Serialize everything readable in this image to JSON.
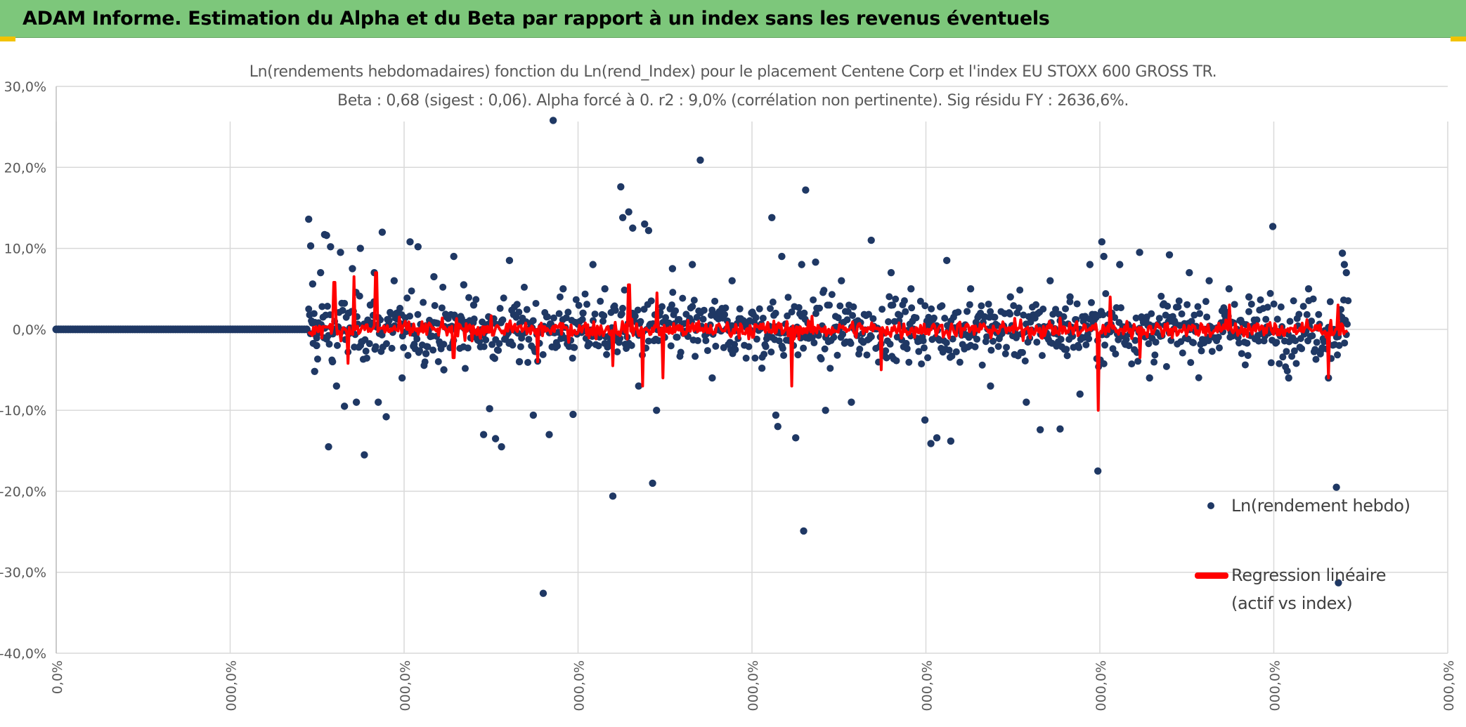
{
  "header": {
    "title": "ADAM Informe. Estimation du Alpha et du Beta par rapport à un index sans les revenus éventuels",
    "accent_color": "#7dc77b"
  },
  "chart_data": {
    "type": "scatter",
    "title": "Ln(rendements hebdomadaires) fonction du Ln(rend_Index) pour le placement Centene Corp et l'index EU STOXX 600 GROSS TR.",
    "subtitle": "Beta : 0,68 (sigest : 0,06). Alpha forcé à 0. r2 : 9,0% (corrélation non pertinente). Sig résidu FY : 2636,6%.",
    "xlabel": "",
    "ylabel": "",
    "ylim": [
      -0.4,
      0.3
    ],
    "y_ticks": [
      0.3,
      0.2,
      0.1,
      0.0,
      -0.1,
      -0.2,
      -0.3,
      -0.4
    ],
    "y_tick_labels": [
      "30,0%",
      "20,0%",
      "10,0%",
      "0,0%",
      "-10,0%",
      "-20,0%",
      "-30,0%",
      "-40,0%"
    ],
    "x_tick_labels": [
      "0,0%",
      "000,0%",
      "000,0%",
      "000,0%",
      "000,0%",
      "000,0%",
      "000,0%",
      "000,0%",
      "000,0%"
    ],
    "grid": true,
    "legend_position": "right",
    "series": [
      {
        "name": "Ln(rendement hebdo)",
        "kind": "scatter",
        "color": "#1f3864",
        "points": [
          [
            0.0,
            0.0
          ],
          [
            0.3,
            0.0
          ],
          [
            0.6,
            0.0
          ],
          [
            0.9,
            0.0
          ],
          [
            1.2,
            0.0
          ],
          [
            1.27,
            0.136
          ],
          [
            1.28,
            0.103
          ],
          [
            1.29,
            0.056
          ],
          [
            1.3,
            -0.052
          ],
          [
            1.31,
            -0.02
          ],
          [
            1.33,
            0.07
          ],
          [
            1.35,
            0.117
          ],
          [
            1.36,
            0.116
          ],
          [
            1.37,
            -0.145
          ],
          [
            1.38,
            0.102
          ],
          [
            1.39,
            -0.04
          ],
          [
            1.41,
            -0.07
          ],
          [
            1.43,
            0.095
          ],
          [
            1.45,
            -0.095
          ],
          [
            1.47,
            0.02
          ],
          [
            1.49,
            0.075
          ],
          [
            1.51,
            -0.09
          ],
          [
            1.53,
            0.1
          ],
          [
            1.55,
            -0.155
          ],
          [
            1.58,
            0.03
          ],
          [
            1.6,
            0.07
          ],
          [
            1.62,
            -0.09
          ],
          [
            1.64,
            0.12
          ],
          [
            1.66,
            -0.108
          ],
          [
            1.7,
            0.06
          ],
          [
            1.74,
            -0.06
          ],
          [
            1.78,
            0.108
          ],
          [
            1.82,
            0.102
          ],
          [
            1.86,
            -0.03
          ],
          [
            1.9,
            0.065
          ],
          [
            1.95,
            -0.05
          ],
          [
            2.0,
            0.09
          ],
          [
            2.05,
            0.055
          ],
          [
            2.1,
            0.03
          ],
          [
            2.15,
            -0.13
          ],
          [
            2.18,
            -0.098
          ],
          [
            2.21,
            -0.135
          ],
          [
            2.24,
            -0.145
          ],
          [
            2.28,
            0.085
          ],
          [
            2.33,
            -0.04
          ],
          [
            2.4,
            -0.106
          ],
          [
            2.45,
            -0.326
          ],
          [
            2.48,
            -0.13
          ],
          [
            2.5,
            0.258
          ],
          [
            2.55,
            0.05
          ],
          [
            2.6,
            -0.105
          ],
          [
            2.65,
            0.02
          ],
          [
            2.7,
            0.08
          ],
          [
            2.76,
            0.05
          ],
          [
            2.8,
            -0.206
          ],
          [
            2.84,
            0.176
          ],
          [
            2.85,
            0.138
          ],
          [
            2.88,
            0.145
          ],
          [
            2.9,
            0.125
          ],
          [
            2.93,
            -0.07
          ],
          [
            2.96,
            0.13
          ],
          [
            2.98,
            0.122
          ],
          [
            3.0,
            -0.19
          ],
          [
            3.02,
            -0.1
          ],
          [
            3.1,
            0.075
          ],
          [
            3.2,
            0.08
          ],
          [
            3.24,
            0.209
          ],
          [
            3.3,
            -0.06
          ],
          [
            3.4,
            0.06
          ],
          [
            3.55,
            -0.048
          ],
          [
            3.6,
            0.138
          ],
          [
            3.62,
            -0.106
          ],
          [
            3.63,
            -0.12
          ],
          [
            3.65,
            0.09
          ],
          [
            3.72,
            -0.134
          ],
          [
            3.75,
            0.08
          ],
          [
            3.76,
            -0.249
          ],
          [
            3.77,
            0.172
          ],
          [
            3.82,
            0.083
          ],
          [
            3.87,
            -0.1
          ],
          [
            3.95,
            0.06
          ],
          [
            4.0,
            -0.09
          ],
          [
            4.1,
            0.11
          ],
          [
            4.2,
            0.07
          ],
          [
            4.3,
            0.05
          ],
          [
            4.37,
            -0.112
          ],
          [
            4.4,
            -0.141
          ],
          [
            4.43,
            -0.134
          ],
          [
            4.48,
            0.085
          ],
          [
            4.5,
            -0.138
          ],
          [
            4.6,
            0.05
          ],
          [
            4.7,
            -0.07
          ],
          [
            4.8,
            0.04
          ],
          [
            4.88,
            -0.09
          ],
          [
            4.95,
            -0.124
          ],
          [
            5.0,
            0.06
          ],
          [
            5.05,
            -0.123
          ],
          [
            5.1,
            0.04
          ],
          [
            5.15,
            -0.08
          ],
          [
            5.2,
            0.08
          ],
          [
            5.24,
            -0.175
          ],
          [
            5.26,
            0.108
          ],
          [
            5.27,
            0.09
          ],
          [
            5.35,
            0.08
          ],
          [
            5.45,
            0.095
          ],
          [
            5.5,
            -0.06
          ],
          [
            5.6,
            0.092
          ],
          [
            5.7,
            0.07
          ],
          [
            5.8,
            0.06
          ],
          [
            5.9,
            0.05
          ],
          [
            6.0,
            0.04
          ],
          [
            6.12,
            0.127
          ],
          [
            6.2,
            -0.06
          ],
          [
            6.3,
            0.05
          ],
          [
            6.4,
            -0.06
          ],
          [
            6.44,
            -0.195
          ],
          [
            6.45,
            -0.313
          ],
          [
            6.47,
            0.094
          ],
          [
            6.48,
            0.08
          ],
          [
            6.49,
            0.07
          ]
        ]
      },
      {
        "name": "Regression linéaire (actif vs index)",
        "kind": "line",
        "color": "#ff0000",
        "x_start": 1.27,
        "x_end": 6.5,
        "spikes": [
          [
            1.4,
            0.058
          ],
          [
            1.47,
            -0.042
          ],
          [
            1.5,
            0.065
          ],
          [
            1.61,
            0.07
          ],
          [
            2.0,
            -0.035
          ],
          [
            2.42,
            -0.04
          ],
          [
            2.8,
            -0.045
          ],
          [
            2.88,
            0.055
          ],
          [
            2.95,
            -0.07
          ],
          [
            3.02,
            0.045
          ],
          [
            3.05,
            -0.06
          ],
          [
            3.7,
            -0.07
          ],
          [
            4.15,
            -0.05
          ],
          [
            5.24,
            -0.1
          ],
          [
            5.3,
            0.04
          ],
          [
            5.45,
            -0.035
          ],
          [
            5.9,
            0.03
          ],
          [
            6.4,
            -0.06
          ],
          [
            6.45,
            0.03
          ]
        ]
      }
    ],
    "x_range": [
      0,
      7
    ],
    "legend_entries": [
      {
        "label_line1": "Ln(rendement hebdo)"
      },
      {
        "label_line1": "Regression linéaire",
        "label_line2": "(actif vs index)"
      }
    ]
  }
}
